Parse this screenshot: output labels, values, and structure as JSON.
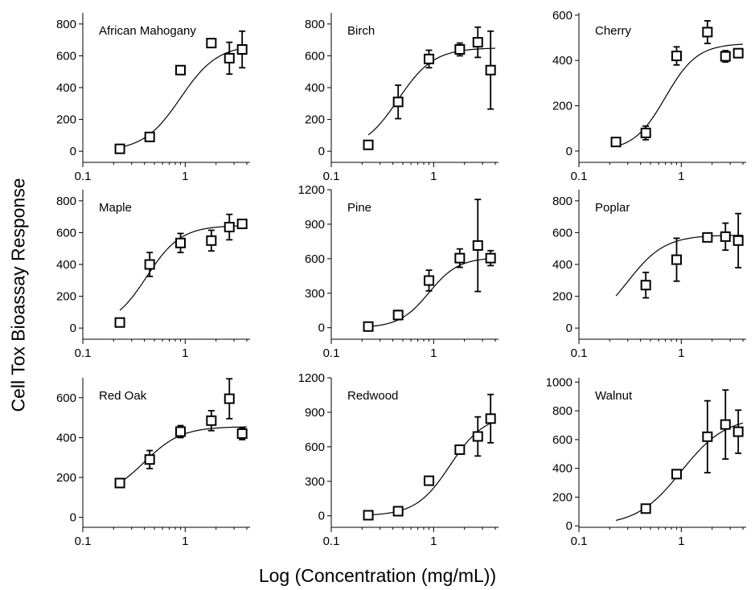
{
  "figure": {
    "ylabel": "Cell Tox Bioassay Response",
    "xlabel": "Log (Concentration (mg/mL))"
  },
  "chart_data": [
    {
      "type": "scatter",
      "title": "African Mahogany",
      "xscale": "log",
      "xlim": [
        0.1,
        4.3
      ],
      "ylim": [
        -70,
        870
      ],
      "yticks": [
        0,
        200,
        400,
        600,
        800
      ],
      "xticks": [
        0.1,
        1
      ],
      "xticklabels": [
        "0.1",
        "1"
      ],
      "fit": {
        "bottom": 0,
        "top": 670,
        "ec50": 0.9,
        "hill": 2.4
      },
      "points": [
        {
          "x": 0.23,
          "y": 15,
          "err": 15
        },
        {
          "x": 0.45,
          "y": 90,
          "err": 20
        },
        {
          "x": 0.9,
          "y": 510,
          "err": 15
        },
        {
          "x": 1.8,
          "y": 680,
          "err": 15
        },
        {
          "x": 2.7,
          "y": 585,
          "err": 100
        },
        {
          "x": 3.6,
          "y": 640,
          "err": 115
        }
      ]
    },
    {
      "type": "scatter",
      "title": "Birch",
      "xscale": "log",
      "xlim": [
        0.1,
        4.3
      ],
      "ylim": [
        -70,
        870
      ],
      "yticks": [
        0,
        200,
        400,
        600,
        800
      ],
      "xticks": [
        0.1,
        1
      ],
      "xticklabels": [
        "0.1",
        "1"
      ],
      "fit": {
        "bottom": 0,
        "top": 650,
        "ec50": 0.45,
        "hill": 2.5
      },
      "points": [
        {
          "x": 0.23,
          "y": 40,
          "err": 20
        },
        {
          "x": 0.45,
          "y": 310,
          "err": 105
        },
        {
          "x": 0.9,
          "y": 580,
          "err": 55
        },
        {
          "x": 1.8,
          "y": 640,
          "err": 40
        },
        {
          "x": 2.7,
          "y": 685,
          "err": 95
        },
        {
          "x": 3.6,
          "y": 510,
          "err": 245
        }
      ]
    },
    {
      "type": "scatter",
      "title": "Cherry",
      "xscale": "log",
      "xlim": [
        0.1,
        4.3
      ],
      "ylim": [
        -50,
        610
      ],
      "yticks": [
        0,
        200,
        400,
        600
      ],
      "xticks": [
        0.1,
        1
      ],
      "xticklabels": [
        "0.1",
        "1"
      ],
      "fit": {
        "bottom": 0,
        "top": 475,
        "ec50": 0.7,
        "hill": 2.8
      },
      "points": [
        {
          "x": 0.23,
          "y": 40,
          "err": 15
        },
        {
          "x": 0.45,
          "y": 80,
          "err": 30
        },
        {
          "x": 0.9,
          "y": 420,
          "err": 40
        },
        {
          "x": 1.8,
          "y": 525,
          "err": 50
        },
        {
          "x": 2.7,
          "y": 418,
          "err": 25
        },
        {
          "x": 3.6,
          "y": 432,
          "err": 15
        }
      ]
    },
    {
      "type": "scatter",
      "title": "Maple",
      "xscale": "log",
      "xlim": [
        0.1,
        4.3
      ],
      "ylim": [
        -70,
        870
      ],
      "yticks": [
        0,
        200,
        400,
        600,
        800
      ],
      "xticks": [
        0.1,
        1
      ],
      "xticklabels": [
        "0.1",
        "1"
      ],
      "fit": {
        "bottom": 0,
        "top": 645,
        "ec50": 0.42,
        "hill": 2.6
      },
      "points": [
        {
          "x": 0.23,
          "y": 35,
          "err": 20
        },
        {
          "x": 0.45,
          "y": 400,
          "err": 75
        },
        {
          "x": 0.9,
          "y": 535,
          "err": 60
        },
        {
          "x": 1.8,
          "y": 550,
          "err": 65
        },
        {
          "x": 2.7,
          "y": 635,
          "err": 80
        },
        {
          "x": 3.6,
          "y": 655,
          "err": 20
        }
      ]
    },
    {
      "type": "scatter",
      "title": "Pine",
      "xscale": "log",
      "xlim": [
        0.1,
        4.3
      ],
      "ylim": [
        -100,
        1200
      ],
      "yticks": [
        0,
        300,
        600,
        900,
        1200
      ],
      "xticks": [
        0.1,
        1
      ],
      "xticklabels": [
        "0.1",
        "1"
      ],
      "fit": {
        "bottom": 0,
        "top": 610,
        "ec50": 0.9,
        "hill": 3.0
      },
      "points": [
        {
          "x": 0.23,
          "y": 10,
          "err": 25
        },
        {
          "x": 0.45,
          "y": 110,
          "err": 40
        },
        {
          "x": 0.9,
          "y": 410,
          "err": 90
        },
        {
          "x": 1.8,
          "y": 605,
          "err": 80
        },
        {
          "x": 2.7,
          "y": 715,
          "err": 400
        },
        {
          "x": 3.6,
          "y": 605,
          "err": 65
        }
      ]
    },
    {
      "type": "scatter",
      "title": "Poplar",
      "xscale": "log",
      "xlim": [
        0.1,
        4.3
      ],
      "ylim": [
        -70,
        870
      ],
      "yticks": [
        0,
        200,
        400,
        600,
        800
      ],
      "xticks": [
        0.1,
        1
      ],
      "xticklabels": [
        "0.1",
        "1"
      ],
      "fit": {
        "bottom": 0,
        "top": 585,
        "ec50": 0.3,
        "hill": 2.4
      },
      "points": [
        {
          "x": 0.45,
          "y": 270,
          "err": 80
        },
        {
          "x": 0.9,
          "y": 430,
          "err": 135
        },
        {
          "x": 1.8,
          "y": 570,
          "err": 15
        },
        {
          "x": 2.7,
          "y": 575,
          "err": 85
        },
        {
          "x": 3.6,
          "y": 550,
          "err": 170
        }
      ]
    },
    {
      "type": "scatter",
      "title": "Red Oak",
      "xscale": "log",
      "xlim": [
        0.1,
        4.3
      ],
      "ylim": [
        -50,
        700
      ],
      "yticks": [
        0,
        200,
        400,
        600
      ],
      "xticks": [
        0.1,
        1
      ],
      "xticklabels": [
        "0.1",
        "1"
      ],
      "fit": {
        "bottom": 100,
        "top": 455,
        "ec50": 0.4,
        "hill": 2.4
      },
      "points": [
        {
          "x": 0.23,
          "y": 172,
          "err": 15
        },
        {
          "x": 0.45,
          "y": 290,
          "err": 45
        },
        {
          "x": 0.9,
          "y": 430,
          "err": 30
        },
        {
          "x": 1.8,
          "y": 485,
          "err": 50
        },
        {
          "x": 2.7,
          "y": 595,
          "err": 100
        },
        {
          "x": 3.6,
          "y": 420,
          "err": 30
        }
      ]
    },
    {
      "type": "scatter",
      "title": "Redwood",
      "xscale": "log",
      "xlim": [
        0.1,
        4.3
      ],
      "ylim": [
        -100,
        1200
      ],
      "yticks": [
        0,
        300,
        600,
        900,
        1200
      ],
      "xticks": [
        0.1,
        1
      ],
      "xticklabels": [
        "0.1",
        "1"
      ],
      "fit": {
        "bottom": 0,
        "top": 880,
        "ec50": 1.45,
        "hill": 2.6
      },
      "points": [
        {
          "x": 0.23,
          "y": 5,
          "err": 20
        },
        {
          "x": 0.45,
          "y": 40,
          "err": 20
        },
        {
          "x": 0.9,
          "y": 305,
          "err": 25
        },
        {
          "x": 1.8,
          "y": 575,
          "err": 25
        },
        {
          "x": 2.7,
          "y": 690,
          "err": 170
        },
        {
          "x": 3.6,
          "y": 845,
          "err": 210
        }
      ]
    },
    {
      "type": "scatter",
      "title": "Walnut",
      "xscale": "log",
      "xlim": [
        0.1,
        4.3
      ],
      "ylim": [
        -10,
        1030
      ],
      "yticks": [
        0,
        200,
        400,
        600,
        800,
        1000
      ],
      "xticks": [
        0.1,
        1
      ],
      "xticklabels": [
        "0.1",
        "1"
      ],
      "fit": {
        "bottom": 0,
        "top": 760,
        "ec50": 1.0,
        "hill": 2.0
      },
      "points": [
        {
          "x": 0.45,
          "y": 120,
          "err": 15
        },
        {
          "x": 0.9,
          "y": 360,
          "err": 20
        },
        {
          "x": 1.8,
          "y": 620,
          "err": 250
        },
        {
          "x": 2.7,
          "y": 705,
          "err": 240
        },
        {
          "x": 3.6,
          "y": 655,
          "err": 150
        }
      ]
    }
  ]
}
